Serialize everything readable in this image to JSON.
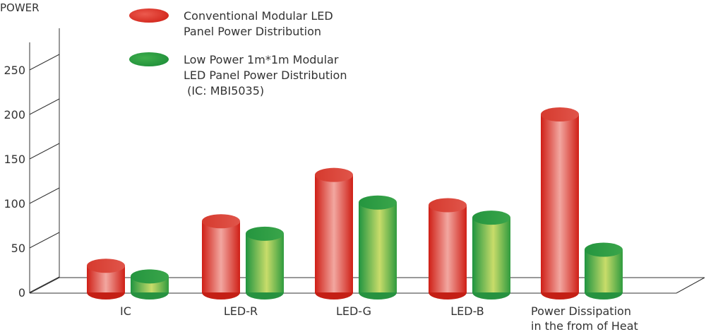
{
  "chart_data": {
    "type": "bar",
    "ylabel": "POWER",
    "ylim": [
      0,
      270
    ],
    "yticks": [
      0,
      50,
      100,
      150,
      200,
      250
    ],
    "categories": [
      "IC",
      "LED-R",
      "LED-G",
      "LED-B",
      "Power Dissipation\nin the from of Heat"
    ],
    "series": [
      {
        "name": "Conventional Modular LED\nPanel Power Distribution",
        "color": "#d9261c",
        "values": [
          30,
          80,
          132,
          98,
          200
        ]
      },
      {
        "name": "Low Power 1m*1m Modular\nLED Panel Power Distribution\n (IC: MBI5035)",
        "color": "#2e9a3a",
        "values": [
          18,
          66,
          101,
          84,
          48
        ]
      }
    ],
    "grid": false,
    "legend": "top-left",
    "style": "3d-cylinder"
  }
}
